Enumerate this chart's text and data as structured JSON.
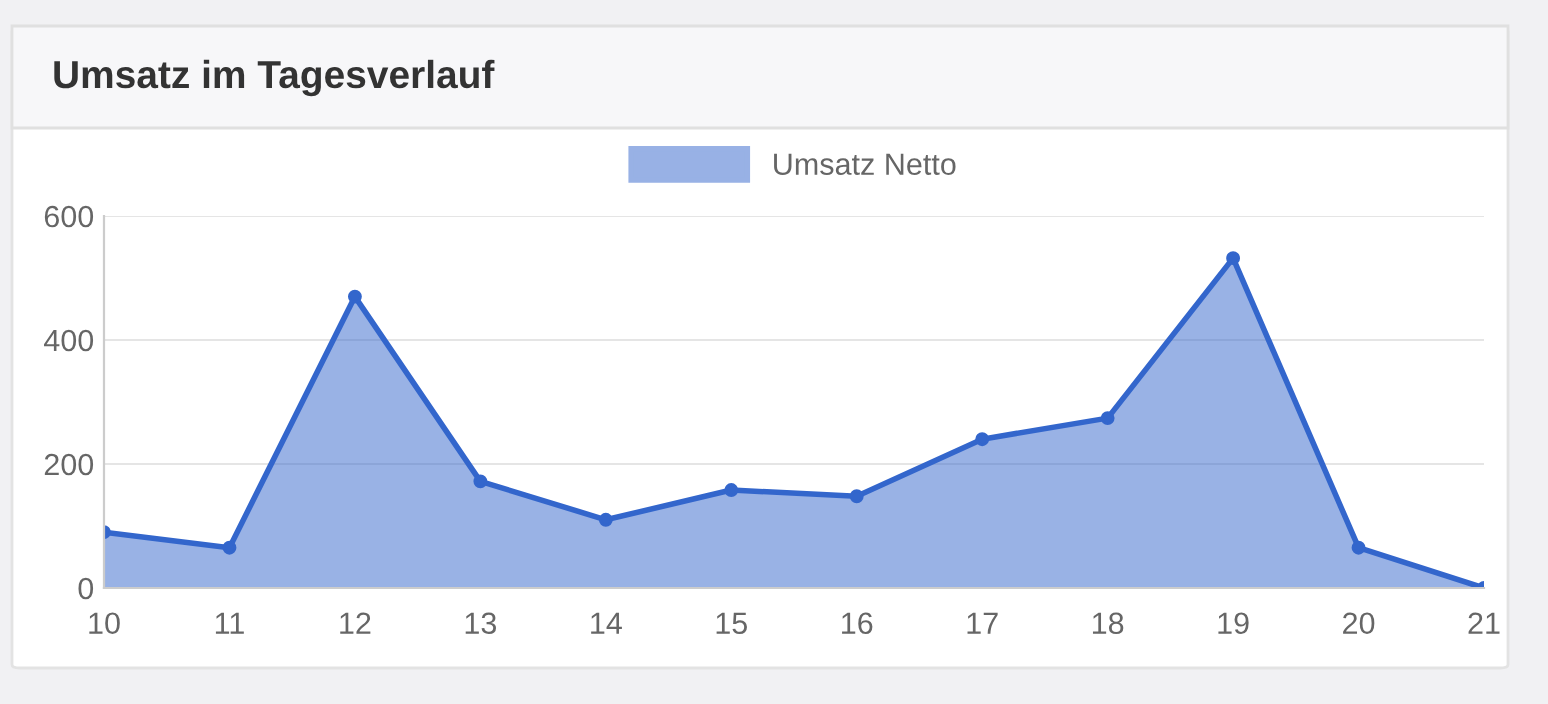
{
  "chart_data": {
    "type": "area",
    "title": "Umsatz im Tagesverlauf",
    "categories": [
      "10",
      "11",
      "12",
      "13",
      "14",
      "15",
      "16",
      "17",
      "18",
      "19",
      "20",
      "21"
    ],
    "series": [
      {
        "name": "Umsatz Netto",
        "color": "#3366cc",
        "values": [
          90,
          65,
          470,
          172,
          110,
          158,
          148,
          240,
          274,
          532,
          65,
          0
        ]
      }
    ],
    "ylim": [
      0,
      600
    ],
    "yticks": [
      0,
      200,
      400,
      600
    ],
    "grid": "y",
    "legend": "top",
    "marker": "circle",
    "line_style": "solid"
  }
}
